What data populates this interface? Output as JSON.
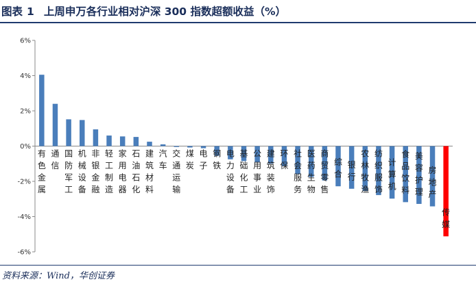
{
  "header": {
    "fig_label": "图表",
    "fig_number": "1",
    "title": "上周申万各行业相对沪深 300 指数超额收益（%）"
  },
  "source": "资料来源：Wind，华创证券",
  "colors": {
    "bar": "#4a7ebb",
    "highlight": "#ff0000",
    "title": "#1a2e5a",
    "rule": "#1f3a6e"
  },
  "chart_data": {
    "type": "bar",
    "title": "上周申万各行业相对沪深 300 指数超额收益（%）",
    "xlabel": "",
    "ylabel": "",
    "ylim": [
      -6,
      6
    ],
    "yticks": [
      "-6%",
      "-4%",
      "-2%",
      "0%",
      "2%",
      "4%",
      "6%"
    ],
    "grid": false,
    "legend": "none",
    "categories": [
      "有色金属",
      "通信",
      "国防军工",
      "机械设备",
      "非银金融",
      "轻工制造",
      "家用电器",
      "石油石化",
      "建筑材料",
      "汽车",
      "交通运输",
      "煤炭",
      "电子",
      "钢铁",
      "电力设备",
      "基础化工",
      "公用事业",
      "建筑装饰",
      "环保",
      "社会服务",
      "医药生物",
      "商贸零售",
      "综合",
      "银行",
      "农林牧渔",
      "纺织服饰",
      "计算机",
      "食品饮料",
      "美容护理",
      "房地产",
      "传媒"
    ],
    "values": [
      4.05,
      2.4,
      1.52,
      1.48,
      0.95,
      0.6,
      0.55,
      0.52,
      0.25,
      0.1,
      -0.05,
      -0.08,
      -0.12,
      -0.55,
      -0.75,
      -0.85,
      -0.92,
      -1.0,
      -1.15,
      -1.6,
      -1.75,
      -1.95,
      -2.28,
      -2.42,
      -2.55,
      -2.78,
      -2.98,
      -3.18,
      -3.28,
      -3.42,
      -5.12
    ],
    "highlight_index": 30
  }
}
